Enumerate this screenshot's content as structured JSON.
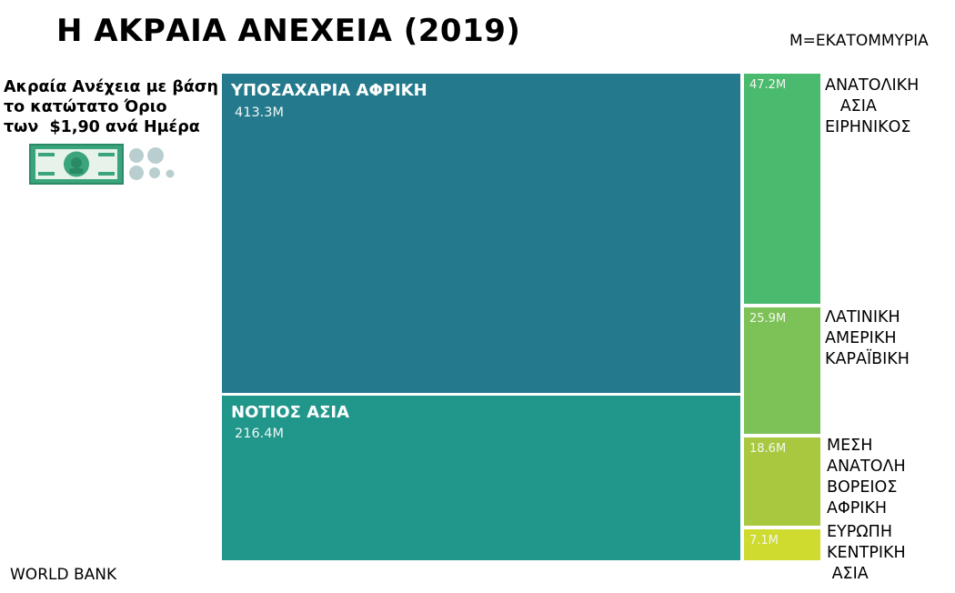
{
  "title": "Η ΑΚΡΑΙΑ ΑΝΕΧΕΙΑ (2019)",
  "unit_note": "Μ=ΕΚΑΤΟΜΜΥΡΙΑ",
  "subtitle_lines": [
    "Ακραία Ανέχεια με βάση",
    "το κατώτατο Όριο",
    "των  $1,90 ανά Ημέρα"
  ],
  "source": "WORLD BANK",
  "colors": {
    "sub_saharan_africa": "#247a8c",
    "south_asia": "#21968a",
    "east_asia_pacific": "#4aba6e",
    "latin_america_caribbean": "#7cc257",
    "mena": "#a8c93f",
    "europe_central_asia": "#cfdb2e"
  },
  "chart_data": {
    "type": "treemap",
    "title": "Η ΑΚΡΑΙΑ ΑΝΕΧΕΙΑ (2019)",
    "unit": "Μ=ΕΚΑΤΟΜΜΥΡΙΑ",
    "items": [
      {
        "name": "ΥΠΟΣΑΧΑΡΙΑ ΑΦΡΙΚΗ",
        "value": 413.3,
        "label": "413.3M"
      },
      {
        "name": "ΝΟΤΙΟΣ ΑΣΙΑ",
        "value": 216.4,
        "label": "216.4M"
      },
      {
        "name_lines": [
          "ΑΝΑΤΟΛΙΚΗ",
          "   ΑΣΙΑ",
          "ΕΙΡΗΝΙΚΟΣ"
        ],
        "value": 47.2,
        "label": "47.2M"
      },
      {
        "name_lines": [
          "ΛΑΤΙΝΙΚΗ",
          "ΑΜΕΡΙΚΗ",
          "ΚΑΡΑΪΒΙΚΗ"
        ],
        "value": 25.9,
        "label": "25.9M"
      },
      {
        "name_lines": [
          "ΜΕΣΗ",
          "ΑΝΑΤΟΛΗ",
          "ΒΟΡΕΙΟΣ",
          "ΑΦΡΙΚΗ"
        ],
        "value": 18.6,
        "label": "18.6M"
      },
      {
        "name_lines": [
          "ΕΥΡΩΠΗ",
          "ΚΕΝΤΡΙΚΗ",
          " ΑΣΙΑ"
        ],
        "value": 7.1,
        "label": "7.1M"
      }
    ]
  }
}
